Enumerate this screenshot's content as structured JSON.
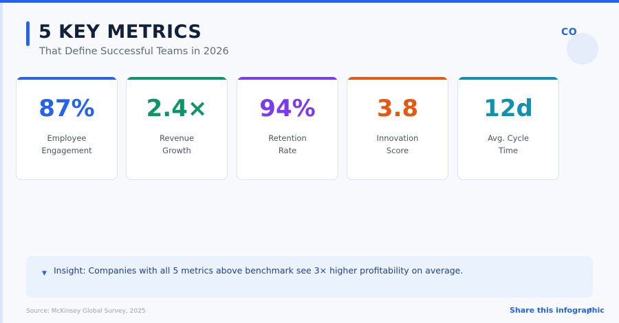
{
  "header": {
    "title": "5 KEY METRICS",
    "subtitle": "That Define Successful Teams in 2026",
    "logo_text": "CO"
  },
  "metrics": [
    {
      "value": "87%",
      "label": "Employee\nEngagement",
      "color": "#2563eb"
    },
    {
      "value": "2.4×",
      "label": "Revenue\nGrowth",
      "color": "#0f9468"
    },
    {
      "value": "94%",
      "label": "Retention\nRate",
      "color": "#7c3aed"
    },
    {
      "value": "3.8",
      "label": "Innovation\nScore",
      "color": "#e25a12"
    },
    {
      "value": "12d",
      "label": "Avg. Cycle\nTime",
      "color": "#1191ad"
    }
  ],
  "insight": {
    "icon": "bullet-triangle-icon",
    "text": "Insight: Companies with all 5 metrics above benchmark see 3× higher profitability on average."
  },
  "footer": {
    "source": "Source: McKinsey Global Survey, 2025",
    "share_label": "Share this infographic",
    "share_icon": "arrow-up-right-icon"
  },
  "colors": {
    "accent": "#2563eb",
    "background": "#f7f9fc"
  }
}
